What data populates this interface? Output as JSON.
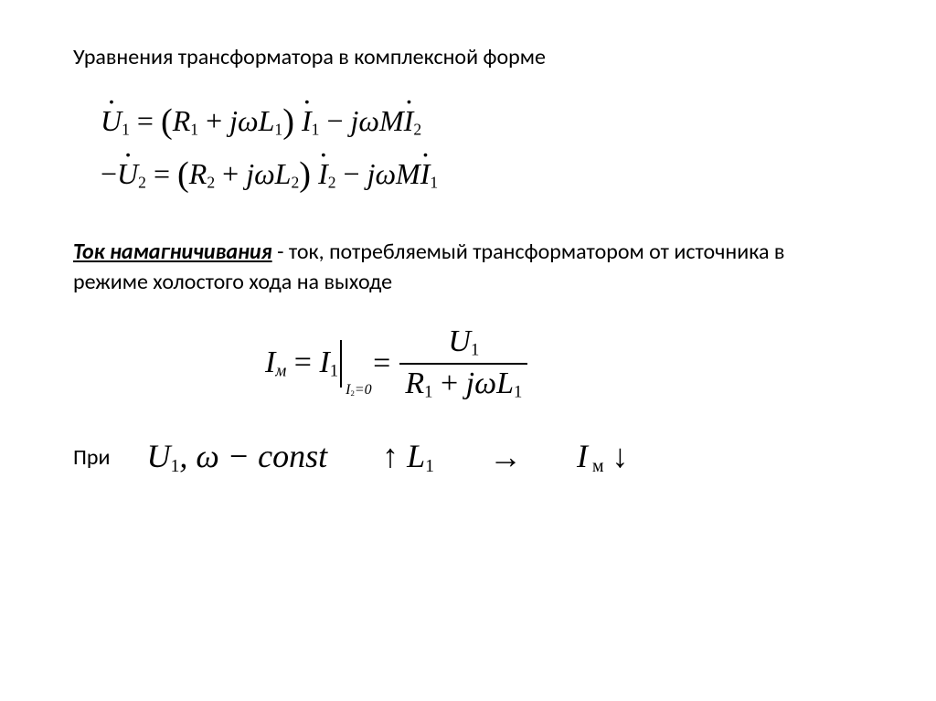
{
  "heading": "Уравнения трансформатора в комплексной форме",
  "eq1_html": "<span class='it'><span class='dotover'>U</span></span><sub>1</sub> = <span class='paren'>(</span><span class='it'>R</span><sub>1</sub> + <span class='it'>jωL</span><sub>1</sub><span class='paren'>)</span> <span class='it'><span class='dotover'>I</span></span><sub>1</sub> − <span class='it'>jωM<span class='dotover'>I</span></span><sub>2</sub>",
  "eq2_html": "−<span class='it'><span class='dotover'>U</span></span><sub>2</sub> = <span class='paren'>(</span><span class='it'>R</span><sub>2</sub> + <span class='it'>jωL</span><sub>2</sub><span class='paren'>)</span> <span class='it'><span class='dotover'>I</span></span><sub>2</sub> − <span class='it'>jωM<span class='dotover'>I</span></span><sub>1</sub>",
  "definition_term": "Ток намагничивания",
  "definition_rest": " - ток, потребляемый трансформатором от источника в режиме холостого хода на выходе",
  "im_left_html": "<span class='it'><span class='dotover'>I</span></span><sub><span class='it'>м</span></sub> = <span class='it'><span class='dotover'>I</span></span><sub>1</sub>",
  "im_cond_html": "<span class='it'><span class='dotover' style=\"top:0\">I</span></span><sub>2</sub>=0",
  "im_frac_num_html": "<span class='it'><span class='dotover'>U</span></span><sub>1</sub>",
  "im_frac_den_html": "<span class='it'>R</span><sub>1</sub> + <span class='it'>jωL</span><sub>1</sub>",
  "pri_label": "При",
  "last_u_html": "<span class='dotover'>U</span><sub>1</sub>, ω − const",
  "last_l_html": "↑ L<sub>1</sub>",
  "last_arrow": "→",
  "last_i_html": "I<sub> м</sub> ↓"
}
